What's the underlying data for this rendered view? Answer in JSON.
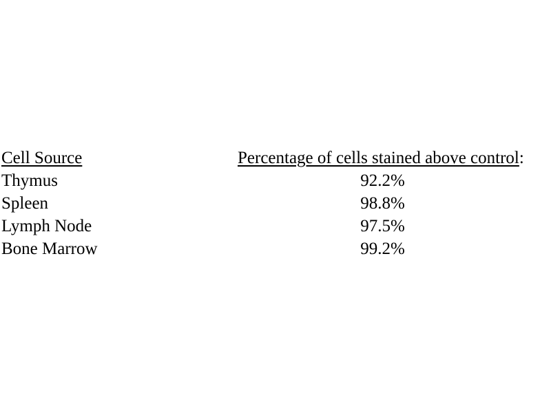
{
  "page": {
    "background": "#ffffff",
    "text_color": "#000000"
  },
  "table": {
    "columns": [
      {
        "label": "Cell Source",
        "suffix": ""
      },
      {
        "label": "Percentage of cells stained above control",
        "suffix": ":"
      }
    ],
    "rows": [
      {
        "source": "Thymus",
        "value": "92.2%"
      },
      {
        "source": "Spleen",
        "value": "98.8%"
      },
      {
        "source": "Lymph Node",
        "value": "97.5%"
      },
      {
        "source": "Bone Marrow",
        "value": "99.2%"
      }
    ]
  }
}
